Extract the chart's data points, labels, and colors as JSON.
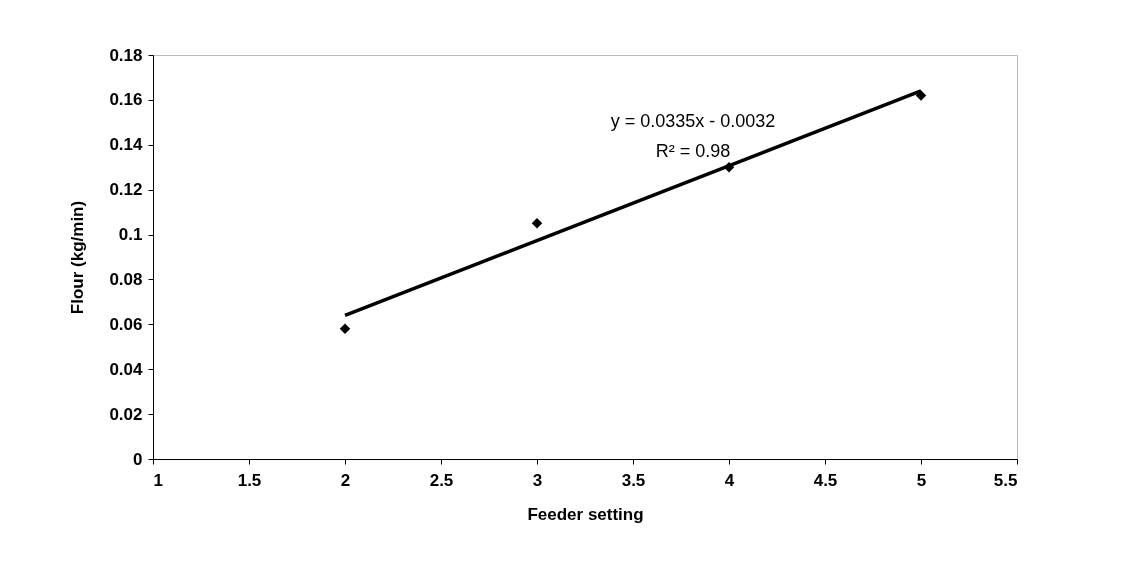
{
  "chart_data": {
    "type": "scatter",
    "xlabel": "Feeder setting",
    "ylabel": "Flour (kg/min)",
    "x": [
      2,
      3,
      4,
      5
    ],
    "series": [
      {
        "color": "#000000",
        "marker": "diamond",
        "values": [
          0.058,
          0.105,
          0.13,
          0.162
        ]
      },
      {
        "type": "line",
        "color": "#000000",
        "x": [
          2,
          5
        ],
        "values": [
          0.064,
          0.164
        ]
      }
    ],
    "annotations": [
      "y = 0.0335x - 0.0032",
      "R² = 0.98"
    ],
    "xlim": [
      1,
      5.5
    ],
    "xticks": [
      1,
      1.5,
      2,
      2.5,
      3,
      3.5,
      4,
      4.5,
      5,
      5.5
    ],
    "ylim": [
      0,
      0.18
    ],
    "yticks": [
      0,
      0.02,
      0.04,
      0.06,
      0.08,
      0.1,
      0.12,
      0.14,
      0.16,
      0.18
    ],
    "grid": false
  }
}
